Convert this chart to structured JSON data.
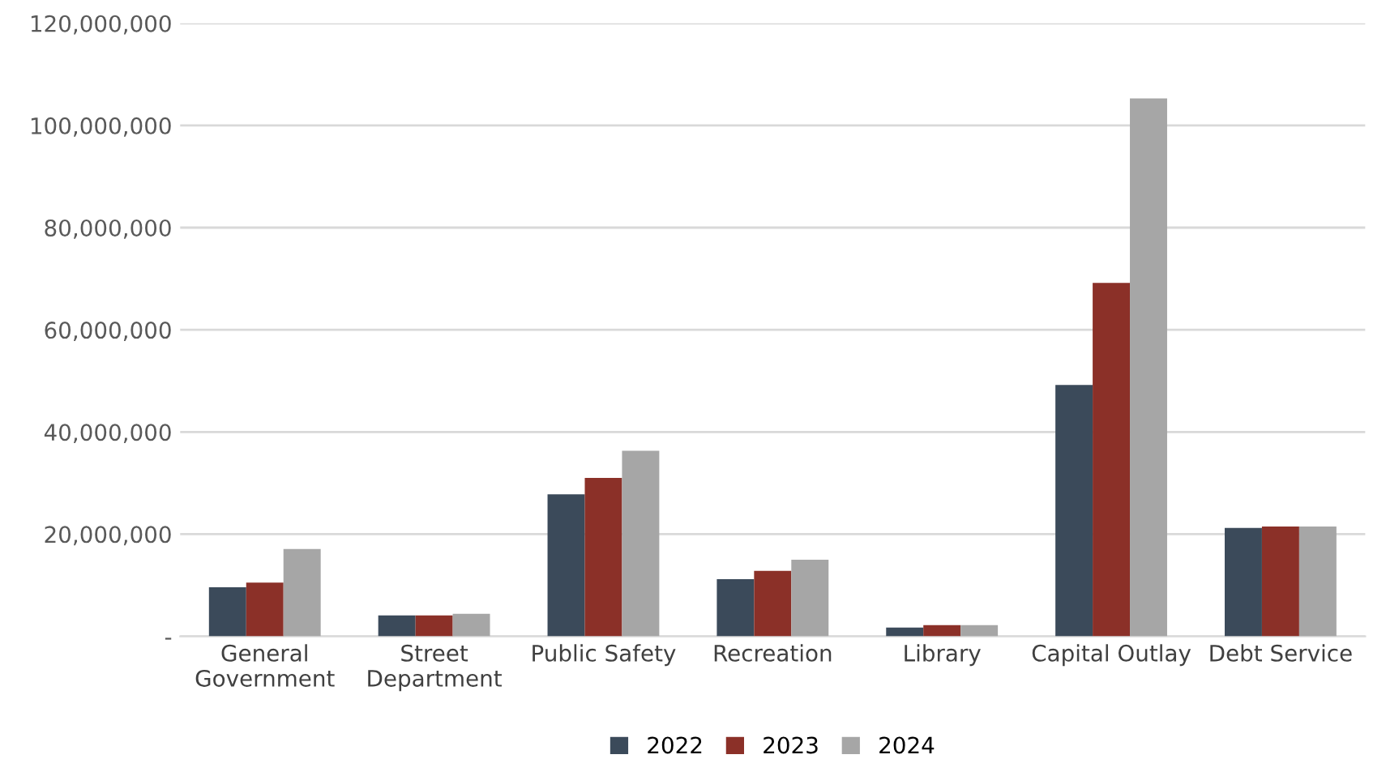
{
  "chart_data": {
    "type": "bar",
    "categories": [
      "General\nGovernment",
      "Street\nDepartment",
      "Public Safety",
      "Recreation",
      "Library",
      "Capital Outlay",
      "Debt Service"
    ],
    "series": [
      {
        "name": "2022",
        "color": "#3b4a5a",
        "values": [
          9600000,
          4100000,
          27800000,
          11200000,
          1700000,
          49200000,
          21200000
        ]
      },
      {
        "name": "2023",
        "color": "#8b3028",
        "values": [
          10500000,
          4100000,
          31000000,
          12800000,
          2200000,
          69200000,
          21500000
        ]
      },
      {
        "name": "2024",
        "color": "#a6a6a6",
        "values": [
          17100000,
          4400000,
          36300000,
          15000000,
          2200000,
          105300000,
          21500000
        ]
      }
    ],
    "ylim": [
      0,
      120000000
    ],
    "yticks": [
      {
        "value": 0,
        "label": "-"
      },
      {
        "value": 20000000,
        "label": "20,000,000"
      },
      {
        "value": 40000000,
        "label": "40,000,000"
      },
      {
        "value": 60000000,
        "label": "60,000,000"
      },
      {
        "value": 80000000,
        "label": "80,000,000"
      },
      {
        "value": 100000000,
        "label": "100,000,000"
      },
      {
        "value": 120000000,
        "label": "120,000,000"
      }
    ],
    "grid": "y",
    "legend": "bottom"
  }
}
